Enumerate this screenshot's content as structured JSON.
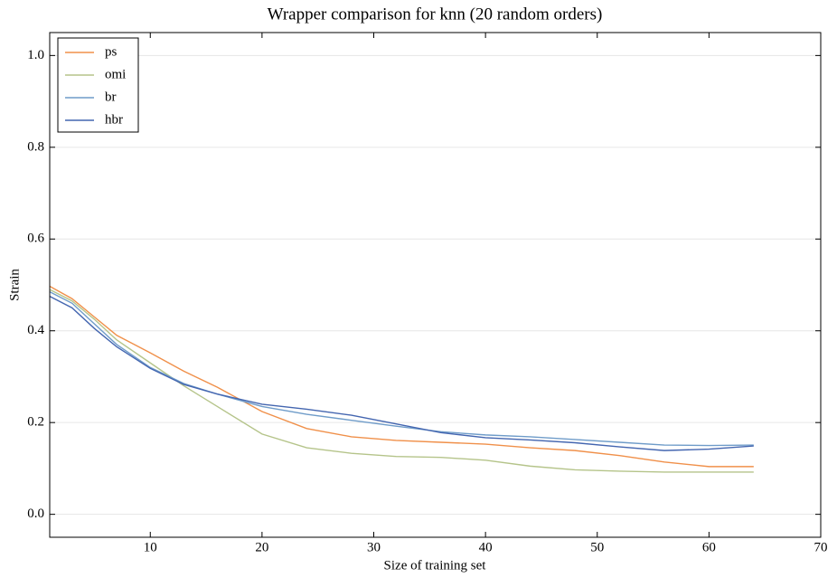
{
  "chart_data": {
    "type": "line",
    "title": "Wrapper comparison for knn (20 random orders)",
    "x_label": "Size of training set",
    "y_label": "Strain",
    "x": [
      1,
      3,
      5,
      7,
      10,
      13,
      16,
      20,
      24,
      28,
      32,
      36,
      40,
      44,
      48,
      52,
      56,
      60,
      64
    ],
    "series": [
      {
        "name": "ps",
        "color": "#f0904a",
        "values": [
          0.497,
          0.47,
          0.43,
          0.39,
          0.352,
          0.312,
          0.277,
          0.224,
          0.187,
          0.169,
          0.161,
          0.157,
          0.153,
          0.145,
          0.139,
          0.128,
          0.114,
          0.104,
          0.104
        ]
      },
      {
        "name": "omi",
        "color": "#b5c48a",
        "values": [
          0.49,
          0.465,
          0.425,
          0.38,
          0.33,
          0.28,
          0.235,
          0.175,
          0.145,
          0.133,
          0.126,
          0.124,
          0.118,
          0.105,
          0.097,
          0.094,
          0.092,
          0.092,
          0.092
        ]
      },
      {
        "name": "br",
        "color": "#6f9cc9",
        "values": [
          0.485,
          0.46,
          0.415,
          0.37,
          0.32,
          0.285,
          0.262,
          0.235,
          0.218,
          0.205,
          0.192,
          0.18,
          0.173,
          0.169,
          0.163,
          0.157,
          0.151,
          0.15,
          0.151
        ]
      },
      {
        "name": "hbr",
        "color": "#4466b0",
        "values": [
          0.475,
          0.45,
          0.405,
          0.365,
          0.318,
          0.283,
          0.262,
          0.24,
          0.229,
          0.216,
          0.197,
          0.178,
          0.167,
          0.162,
          0.156,
          0.147,
          0.139,
          0.142,
          0.149
        ]
      }
    ],
    "xlim": [
      1,
      70
    ],
    "xticks": [
      10,
      20,
      30,
      40,
      50,
      60,
      70
    ],
    "ylim": [
      -0.05,
      1.05
    ],
    "yticks": [
      {
        "value": 0,
        "label": "0.0"
      },
      0.2,
      0.4,
      0.6,
      0.8,
      {
        "value": 1,
        "label": "1.0"
      }
    ],
    "grid": true,
    "legend": "upper-left"
  }
}
